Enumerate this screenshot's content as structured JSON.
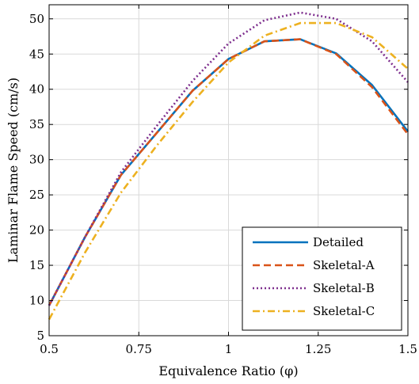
{
  "chart_data": {
    "type": "line",
    "title": "",
    "xlabel": "Equivalence Ratio (φ)",
    "ylabel": "Laminar Flame Speed (cm/s)",
    "xlim": [
      0.5,
      1.5
    ],
    "ylim": [
      5,
      52
    ],
    "xticks": [
      0.5,
      0.75,
      1,
      1.25,
      1.5
    ],
    "xtick_labels": [
      "0.5",
      "0.75",
      "1",
      "1.25",
      "1.5"
    ],
    "yticks": [
      5,
      10,
      15,
      20,
      25,
      30,
      35,
      40,
      45,
      50
    ],
    "ytick_labels": [
      "5",
      "10",
      "15",
      "20",
      "25",
      "30",
      "35",
      "40",
      "45",
      "50"
    ],
    "grid": true,
    "legend_position": "bottom-right",
    "x": [
      0.5,
      0.6,
      0.7,
      0.8,
      0.9,
      1.0,
      1.1,
      1.2,
      1.3,
      1.4,
      1.5
    ],
    "series": [
      {
        "name": "Detailed",
        "color": "#0072BD",
        "dash": "solid",
        "values": [
          9.3,
          19.0,
          27.8,
          33.8,
          39.8,
          44.3,
          46.8,
          47.1,
          45.1,
          40.6,
          34.0
        ]
      },
      {
        "name": "Skeletal-A",
        "color": "#D95319",
        "dash": "dashed",
        "values": [
          9.3,
          19.0,
          27.8,
          33.8,
          39.8,
          44.3,
          46.8,
          47.1,
          45.0,
          40.3,
          33.6
        ]
      },
      {
        "name": "Skeletal-B",
        "color": "#7E2F8E",
        "dash": "dotted",
        "values": [
          9.3,
          19.0,
          28.2,
          34.8,
          41.2,
          46.5,
          49.8,
          50.9,
          50.0,
          46.8,
          41.0
        ]
      },
      {
        "name": "Skeletal-C",
        "color": "#EDB120",
        "dash": "dashdot",
        "values": [
          7.3,
          16.8,
          25.3,
          32.0,
          38.2,
          43.8,
          47.6,
          49.4,
          49.4,
          47.4,
          42.9
        ]
      }
    ]
  }
}
